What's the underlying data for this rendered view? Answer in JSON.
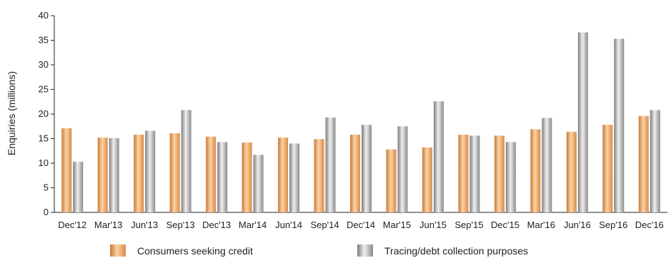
{
  "chart_data": {
    "type": "bar",
    "ylabel": "Enquiries (millions)",
    "xlabel": "",
    "ylim": [
      0,
      40
    ],
    "yticks": [
      0,
      5,
      10,
      15,
      20,
      25,
      30,
      35,
      40
    ],
    "grid": false,
    "legend_position": "bottom",
    "categories": [
      "Dec'12",
      "Mar'13",
      "Jun'13",
      "Sep'13",
      "Dec'13",
      "Mar'14",
      "Jun'14",
      "Sep'14",
      "Dec'14",
      "Mar'15",
      "Jun'15",
      "Sep'15",
      "Dec'15",
      "Mar'16",
      "Jun'16",
      "Sep'16",
      "Dec'16"
    ],
    "series": [
      {
        "name": "Consumers seeking credit",
        "color": "#e9a05a",
        "values": [
          17.1,
          15.2,
          15.8,
          16.1,
          15.4,
          14.2,
          15.2,
          14.9,
          15.8,
          12.8,
          13.2,
          15.8,
          15.6,
          16.9,
          16.4,
          17.8,
          19.6
        ]
      },
      {
        "name": "Tracing/debt collection purposes",
        "color": "#a9a9a9",
        "values": [
          10.3,
          15.1,
          16.6,
          20.8,
          14.3,
          11.7,
          14.0,
          19.3,
          17.8,
          17.5,
          22.6,
          15.6,
          14.3,
          19.2,
          36.6,
          35.3,
          20.8
        ]
      }
    ]
  }
}
